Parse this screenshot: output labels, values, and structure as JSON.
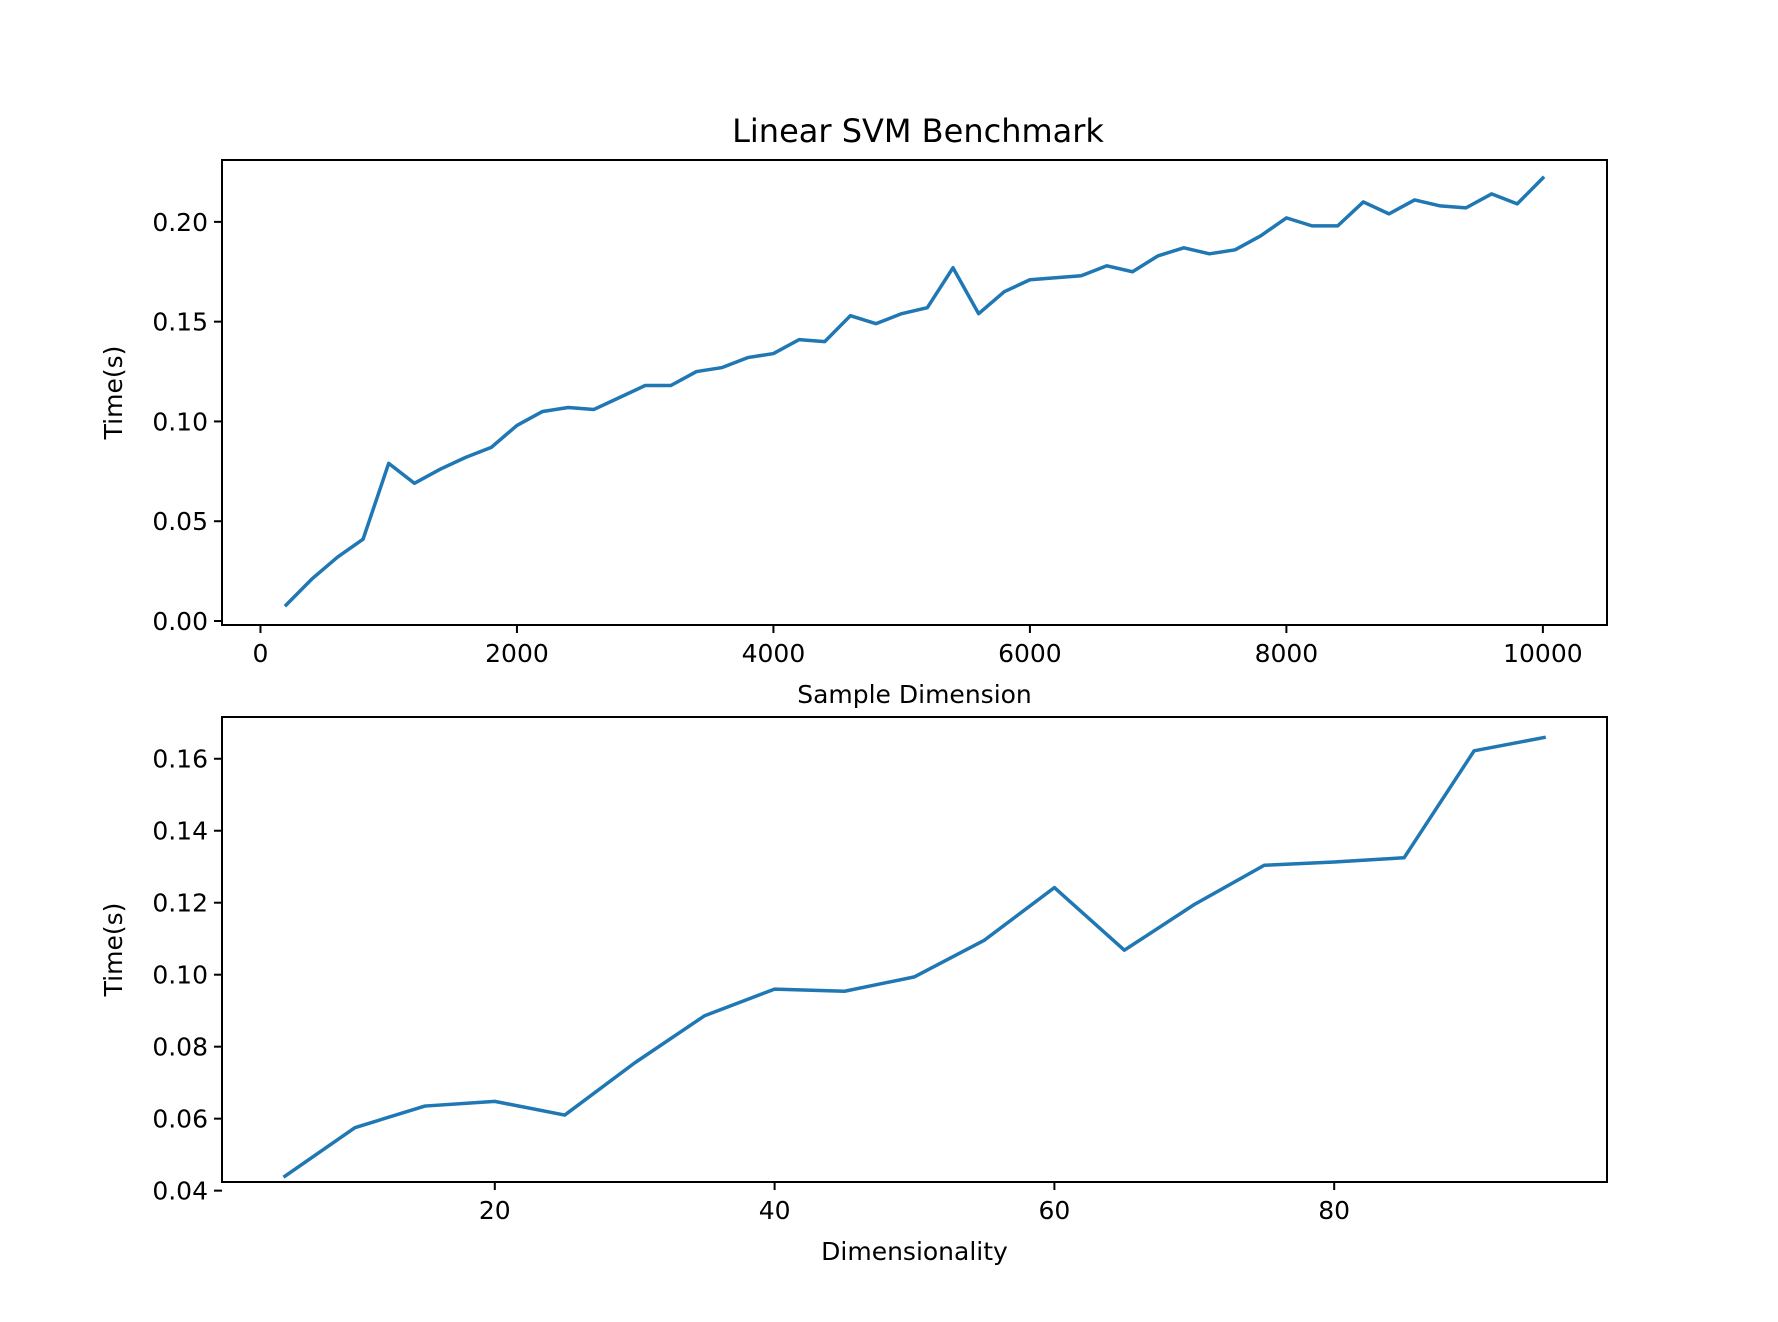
{
  "figure_title": "Linear SVM Benchmark",
  "line_color": "#1f77b4",
  "chart_data": [
    {
      "type": "line",
      "title": "Linear SVM Benchmark",
      "xlabel": "Sample Dimension",
      "ylabel": "Time(s)",
      "xlim": [
        -300,
        10500
      ],
      "ylim": [
        -0.002,
        0.231
      ],
      "grid": false,
      "xticks": [
        0,
        2000,
        4000,
        6000,
        8000,
        10000
      ],
      "xtick_labels": [
        "0",
        "2000",
        "4000",
        "6000",
        "8000",
        "10000"
      ],
      "yticks": [
        0.0,
        0.05,
        0.1,
        0.15,
        0.2
      ],
      "ytick_labels": [
        "0.00",
        "0.05",
        "0.10",
        "0.15",
        "0.20"
      ],
      "x": [
        200,
        400,
        600,
        800,
        1000,
        1200,
        1400,
        1600,
        1800,
        2000,
        2200,
        2400,
        2600,
        2800,
        3000,
        3200,
        3400,
        3600,
        3800,
        4000,
        4200,
        4400,
        4600,
        4800,
        5000,
        5200,
        5400,
        5600,
        5800,
        6000,
        6200,
        6400,
        6600,
        6800,
        7000,
        7200,
        7400,
        7600,
        7800,
        8000,
        8200,
        8400,
        8600,
        8800,
        9000,
        9200,
        9400,
        9600,
        9800,
        10000
      ],
      "series": [
        {
          "values": [
            0.008,
            0.021,
            0.032,
            0.041,
            0.079,
            0.069,
            0.076,
            0.082,
            0.087,
            0.098,
            0.105,
            0.107,
            0.106,
            0.112,
            0.118,
            0.118,
            0.125,
            0.127,
            0.132,
            0.134,
            0.141,
            0.14,
            0.153,
            0.149,
            0.154,
            0.157,
            0.177,
            0.154,
            0.165,
            0.171,
            0.172,
            0.173,
            0.178,
            0.175,
            0.183,
            0.187,
            0.184,
            0.186,
            0.193,
            0.202,
            0.198,
            0.198,
            0.21,
            0.204,
            0.211,
            0.208,
            0.207,
            0.214,
            0.209,
            0.222
          ]
        }
      ]
    },
    {
      "type": "line",
      "xlabel": "Dimensionality",
      "ylabel": "Time(s)",
      "xlim": [
        0.5,
        99.5
      ],
      "ylim": [
        0.0424,
        0.1716
      ],
      "grid": false,
      "xticks": [
        20,
        40,
        60,
        80
      ],
      "xtick_labels": [
        "20",
        "40",
        "60",
        "80"
      ],
      "yticks": [
        0.04,
        0.06,
        0.08,
        0.1,
        0.12,
        0.14,
        0.16
      ],
      "ytick_labels": [
        "0.04",
        "0.06",
        "0.08",
        "0.10",
        "0.12",
        "0.14",
        "0.16"
      ],
      "x": [
        5,
        10,
        15,
        20,
        25,
        30,
        35,
        40,
        45,
        50,
        55,
        60,
        65,
        70,
        75,
        80,
        85,
        90,
        95
      ],
      "series": [
        {
          "values": [
            0.044,
            0.0575,
            0.0635,
            0.0648,
            0.061,
            0.0755,
            0.0886,
            0.096,
            0.0954,
            0.0994,
            0.1096,
            0.1242,
            0.1068,
            0.1195,
            0.1304,
            0.1313,
            0.1325,
            0.1622,
            0.1659
          ]
        }
      ]
    }
  ]
}
